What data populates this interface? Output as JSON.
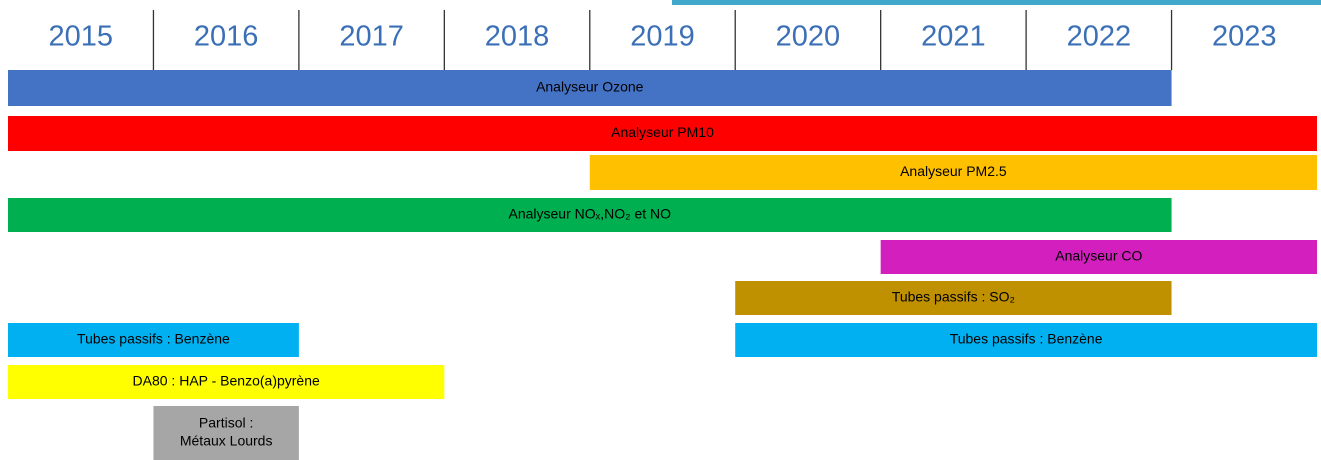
{
  "chart_data": {
    "type": "gantt",
    "categories": [
      2015,
      2016,
      2017,
      2018,
      2019,
      2020,
      2021,
      2022,
      2023
    ],
    "xlim": [
      2015,
      2024
    ],
    "rows": [
      [
        {
          "label": [
            "Analyseur Ozone"
          ],
          "start": 2015,
          "end": 2023,
          "color": "#4472c4"
        }
      ],
      [
        {
          "label": [
            "Analyseur PM10"
          ],
          "start": 2015,
          "end": 2024,
          "color": "#ff0000"
        }
      ],
      [
        {
          "label": [
            "Analyseur PM2.5"
          ],
          "start": 2019,
          "end": 2024,
          "color": "#ffc000"
        }
      ],
      [
        {
          "label": [
            "Analyseur NOₓ,NO₂ et NO"
          ],
          "start": 2015,
          "end": 2023,
          "color": "#00b050"
        }
      ],
      [
        {
          "label": [
            "Analyseur CO"
          ],
          "start": 2021,
          "end": 2024,
          "color": "#d41fbf"
        }
      ],
      [
        {
          "label": [
            "Tubes passifs : SO₂"
          ],
          "start": 2020,
          "end": 2023,
          "color": "#bf9000"
        }
      ],
      [
        {
          "label": [
            "Tubes passifs : Benzène"
          ],
          "start": 2015,
          "end": 2017,
          "color": "#00b0f0"
        },
        {
          "label": [
            "Tubes passifs : Benzène"
          ],
          "start": 2020,
          "end": 2024,
          "color": "#00b0f0"
        }
      ],
      [
        {
          "label": [
            "DA80 : HAP - Benzo(a)pyrène"
          ],
          "start": 2015,
          "end": 2018,
          "color": "#ffff00"
        }
      ],
      [
        {
          "label": [
            "Partisol :",
            "Métaux Lourds"
          ],
          "start": 2016,
          "end": 2017,
          "color": "#a6a6a6"
        }
      ]
    ]
  }
}
